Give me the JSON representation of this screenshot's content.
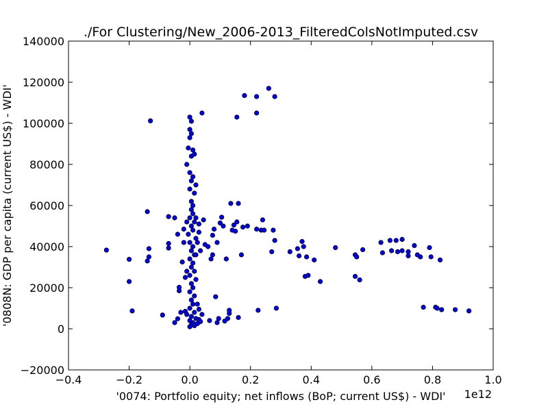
{
  "chart_data": {
    "type": "scatter",
    "title": "./For Clustering/New_2006-2013_FilteredColsNotImputed.csv",
    "xlabel": "'0074: Portfolio equity; net inflows  (BoP; current US$) - WDI'",
    "ylabel": "'0808N: GDP per capita  (current US$) - WDI'",
    "x_offset_label": "1e12",
    "xlim": [
      -0.4,
      1.0
    ],
    "ylim": [
      -20000,
      140000
    ],
    "x_tick_labels": [
      "−0.4",
      "−0.2",
      "0.0",
      "0.2",
      "0.4",
      "0.6",
      "0.8",
      "1.0"
    ],
    "y_tick_labels": [
      "−20000",
      "0",
      "20000",
      "40000",
      "60000",
      "80000",
      "100000",
      "120000",
      "140000"
    ],
    "marker_color": "#0000ff",
    "marker_edge": "#000000",
    "grid": false,
    "points": [
      [
        -0.275,
        38300
      ],
      [
        -0.2,
        33800
      ],
      [
        -0.2,
        23000
      ],
      [
        -0.19,
        8700
      ],
      [
        -0.14,
        57000
      ],
      [
        -0.14,
        33000
      ],
      [
        -0.135,
        35000
      ],
      [
        -0.135,
        39000
      ],
      [
        -0.13,
        101200
      ],
      [
        -0.09,
        6700
      ],
      [
        -0.07,
        39300
      ],
      [
        -0.07,
        41500
      ],
      [
        -0.07,
        54600
      ],
      [
        -0.05,
        54000
      ],
      [
        -0.05,
        3000
      ],
      [
        -0.04,
        4900
      ],
      [
        -0.04,
        46000
      ],
      [
        -0.035,
        18500
      ],
      [
        -0.035,
        20200
      ],
      [
        -0.03,
        8000
      ],
      [
        -0.025,
        32500
      ],
      [
        -0.02,
        42000
      ],
      [
        -0.02,
        48500
      ],
      [
        -0.015,
        8500
      ],
      [
        -0.015,
        25000
      ],
      [
        -0.01,
        7000
      ],
      [
        -0.01,
        28000
      ],
      [
        -0.01,
        52000
      ],
      [
        0.0,
        103000
      ],
      [
        0.005,
        101000
      ],
      [
        0.0,
        97000
      ],
      [
        0.005,
        95000
      ],
      [
        0.0,
        93000
      ],
      [
        -0.005,
        88000
      ],
      [
        0.01,
        87000
      ],
      [
        0.005,
        84000
      ],
      [
        0.015,
        85000
      ],
      [
        -0.01,
        80000
      ],
      [
        0.0,
        76000
      ],
      [
        0.01,
        74000
      ],
      [
        0.005,
        72000
      ],
      [
        0.02,
        70000
      ],
      [
        0.0,
        68000
      ],
      [
        0.015,
        66000
      ],
      [
        0.005,
        62000
      ],
      [
        0.01,
        60000
      ],
      [
        0.005,
        58000
      ],
      [
        0.01,
        56000
      ],
      [
        0.0,
        54000
      ],
      [
        0.015,
        52000
      ],
      [
        0.005,
        50000
      ],
      [
        0.01,
        48000
      ],
      [
        -0.005,
        46000
      ],
      [
        0.02,
        44000
      ],
      [
        0.0,
        42000
      ],
      [
        0.01,
        40000
      ],
      [
        0.005,
        38000
      ],
      [
        0.015,
        36000
      ],
      [
        0.0,
        34000
      ],
      [
        0.01,
        32000
      ],
      [
        0.005,
        30000
      ],
      [
        0.015,
        28000
      ],
      [
        0.0,
        26000
      ],
      [
        0.02,
        24000
      ],
      [
        0.005,
        22000
      ],
      [
        0.01,
        20000
      ],
      [
        0.0,
        18000
      ],
      [
        0.015,
        16000
      ],
      [
        0.005,
        14000
      ],
      [
        0.01,
        12000
      ],
      [
        0.0,
        10000
      ],
      [
        0.015,
        8000
      ],
      [
        0.005,
        6000
      ],
      [
        0.02,
        5000
      ],
      [
        0.0,
        4000
      ],
      [
        0.01,
        3000
      ],
      [
        0.005,
        2000
      ],
      [
        0.015,
        1500
      ],
      [
        0.0,
        1000
      ],
      [
        0.025,
        2500
      ],
      [
        0.03,
        4500
      ],
      [
        0.035,
        3500
      ],
      [
        0.04,
        7000
      ],
      [
        0.03,
        9500
      ],
      [
        0.025,
        12000
      ],
      [
        0.02,
        36000
      ],
      [
        0.025,
        42000
      ],
      [
        0.03,
        47000
      ],
      [
        0.035,
        38000
      ],
      [
        0.03,
        51000
      ],
      [
        0.02,
        54000
      ],
      [
        0.04,
        105000
      ],
      [
        0.045,
        53000
      ],
      [
        0.05,
        41000
      ],
      [
        0.06,
        40000
      ],
      [
        0.065,
        4000
      ],
      [
        0.07,
        34000
      ],
      [
        0.075,
        36000
      ],
      [
        0.075,
        45500
      ],
      [
        0.08,
        48500
      ],
      [
        0.085,
        15600
      ],
      [
        0.09,
        42000
      ],
      [
        0.09,
        3000
      ],
      [
        0.095,
        5000
      ],
      [
        0.1,
        51500
      ],
      [
        0.105,
        54300
      ],
      [
        0.11,
        50000
      ],
      [
        0.115,
        3800
      ],
      [
        0.12,
        34000
      ],
      [
        0.125,
        5000
      ],
      [
        0.13,
        7500
      ],
      [
        0.13,
        9000
      ],
      [
        0.135,
        61000
      ],
      [
        0.14,
        48000
      ],
      [
        0.145,
        50500
      ],
      [
        0.15,
        47500
      ],
      [
        0.155,
        52000
      ],
      [
        0.155,
        103000
      ],
      [
        0.16,
        61000
      ],
      [
        0.16,
        5500
      ],
      [
        0.17,
        36000
      ],
      [
        0.175,
        49500
      ],
      [
        0.18,
        113500
      ],
      [
        0.19,
        50000
      ],
      [
        0.22,
        113000
      ],
      [
        0.22,
        105000
      ],
      [
        0.22,
        48500
      ],
      [
        0.225,
        9000
      ],
      [
        0.235,
        48000
      ],
      [
        0.24,
        53000
      ],
      [
        0.245,
        48000
      ],
      [
        0.26,
        117000
      ],
      [
        0.27,
        37500
      ],
      [
        0.275,
        48000
      ],
      [
        0.28,
        43000
      ],
      [
        0.28,
        113000
      ],
      [
        0.285,
        10000
      ],
      [
        0.33,
        37500
      ],
      [
        0.355,
        39000
      ],
      [
        0.36,
        35500
      ],
      [
        0.37,
        42500
      ],
      [
        0.375,
        40000
      ],
      [
        0.38,
        25500
      ],
      [
        0.385,
        35000
      ],
      [
        0.39,
        26000
      ],
      [
        0.41,
        33500
      ],
      [
        0.43,
        23000
      ],
      [
        0.48,
        39500
      ],
      [
        0.545,
        25500
      ],
      [
        0.545,
        36000
      ],
      [
        0.55,
        35000
      ],
      [
        0.56,
        23800
      ],
      [
        0.57,
        38500
      ],
      [
        0.63,
        42000
      ],
      [
        0.635,
        37000
      ],
      [
        0.66,
        43000
      ],
      [
        0.665,
        38000
      ],
      [
        0.68,
        43000
      ],
      [
        0.685,
        37500
      ],
      [
        0.7,
        43500
      ],
      [
        0.7,
        38000
      ],
      [
        0.72,
        37500
      ],
      [
        0.72,
        35500
      ],
      [
        0.74,
        40500
      ],
      [
        0.75,
        36000
      ],
      [
        0.76,
        35000
      ],
      [
        0.77,
        10500
      ],
      [
        0.79,
        39500
      ],
      [
        0.795,
        35000
      ],
      [
        0.81,
        10500
      ],
      [
        0.815,
        10000
      ],
      [
        0.825,
        33500
      ],
      [
        0.83,
        9300
      ],
      [
        0.875,
        9300
      ],
      [
        0.92,
        8700
      ]
    ]
  }
}
